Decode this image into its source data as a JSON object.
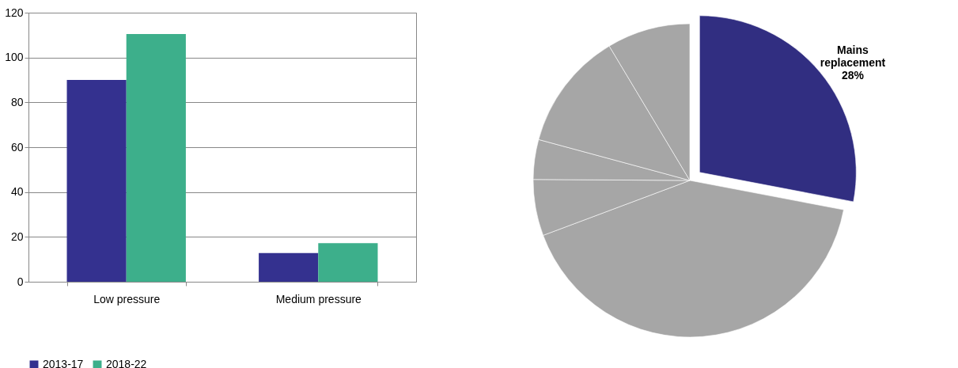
{
  "chart_data": [
    {
      "type": "bar",
      "categories": [
        "Low pressure",
        "Medium pressure"
      ],
      "series": [
        {
          "name": "2013-17",
          "color": "#34318f",
          "values": [
            90,
            12.8
          ]
        },
        {
          "name": "2018-22",
          "color": "#3daf8b",
          "values": [
            110.5,
            17.2
          ]
        }
      ],
      "ylim": [
        0,
        120
      ],
      "yticks": [
        0,
        20,
        40,
        60,
        80,
        100,
        120
      ],
      "grid": "y",
      "legend": "bottom"
    },
    {
      "type": "pie",
      "categories": [
        "Mains replacement",
        null,
        null,
        null,
        null,
        null
      ],
      "values": [
        28,
        41.3,
        5.8,
        4.1,
        12.2,
        8.6
      ],
      "colors": [
        "#312e81",
        "#a6a6a6",
        "#a6a6a6",
        "#a6a6a6",
        "#a6a6a6",
        "#a6a6a6"
      ],
      "value_labels": [
        "28%",
        null,
        null,
        null,
        null,
        null
      ]
    }
  ]
}
